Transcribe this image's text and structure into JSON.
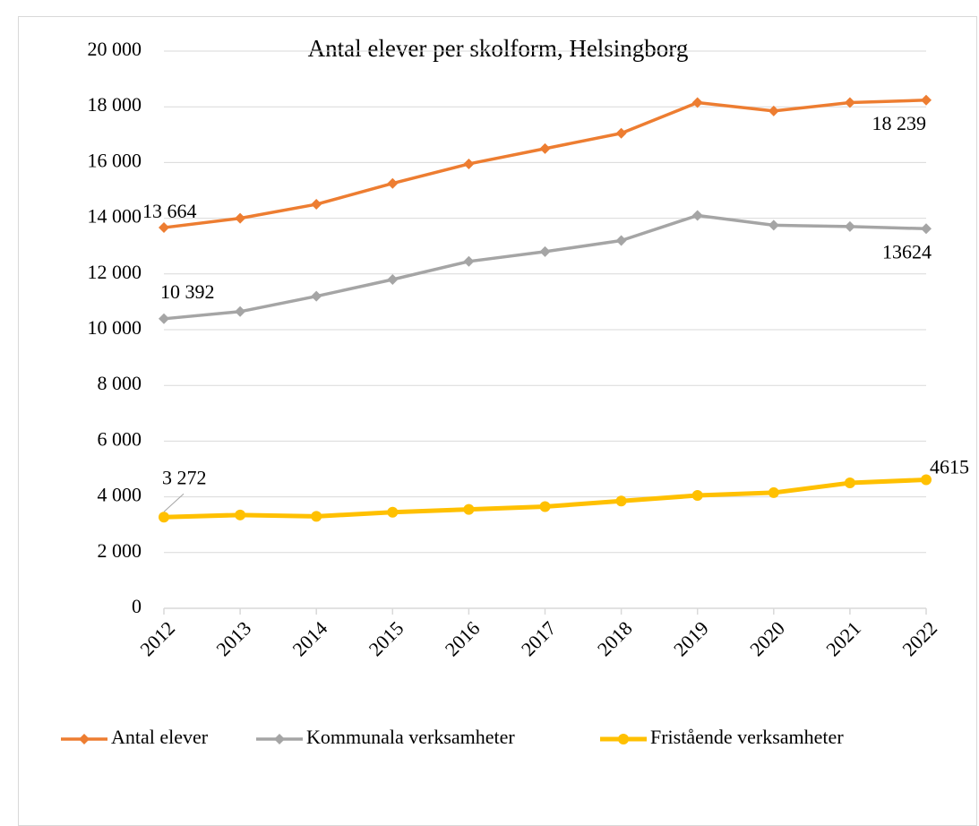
{
  "chart_data": {
    "type": "line",
    "title": "Antal elever per skolform, Helsingborg",
    "categories": [
      "2012",
      "2013",
      "2014",
      "2015",
      "2016",
      "2017",
      "2018",
      "2019",
      "2020",
      "2021",
      "2022"
    ],
    "series": [
      {
        "name": "Antal elever",
        "color": "#ED7D31",
        "marker": "diamond",
        "values": [
          13664,
          14000,
          14500,
          15250,
          15950,
          16500,
          17050,
          18150,
          17850,
          18150,
          18239
        ],
        "value_labels": [
          "13 664",
          null,
          null,
          null,
          null,
          null,
          null,
          null,
          null,
          null,
          "18 239"
        ]
      },
      {
        "name": "Kommunala verksamheter",
        "color": "#A5A5A5",
        "marker": "diamond",
        "values": [
          10392,
          10650,
          11200,
          11800,
          12450,
          12800,
          13200,
          14100,
          13750,
          13700,
          13624
        ],
        "value_labels": [
          "10 392",
          null,
          null,
          null,
          null,
          null,
          null,
          null,
          null,
          null,
          "13624"
        ]
      },
      {
        "name": "Fristående verksamheter",
        "color": "#FFC000",
        "marker": "circle",
        "values": [
          3272,
          3350,
          3300,
          3450,
          3550,
          3650,
          3850,
          4050,
          4150,
          4500,
          4615
        ],
        "value_labels": [
          "3 272",
          null,
          null,
          null,
          null,
          null,
          null,
          null,
          null,
          null,
          "4615"
        ]
      }
    ],
    "ylim": [
      0,
      20000
    ],
    "yticks": [
      0,
      {
        "value": 2000,
        "label": "2 000"
      },
      {
        "value": 4000,
        "label": "4 000"
      },
      {
        "value": 6000,
        "label": "6 000"
      },
      {
        "value": 8000,
        "label": "8 000"
      },
      {
        "value": 10000,
        "label": "10 000"
      },
      {
        "value": 12000,
        "label": "12 000"
      },
      {
        "value": 14000,
        "label": "14 000"
      },
      {
        "value": 16000,
        "label": "16 000"
      },
      {
        "value": 18000,
        "label": "18 000"
      },
      {
        "value": 20000,
        "label": "20 000"
      }
    ],
    "grid": true,
    "legend": "bottom"
  }
}
